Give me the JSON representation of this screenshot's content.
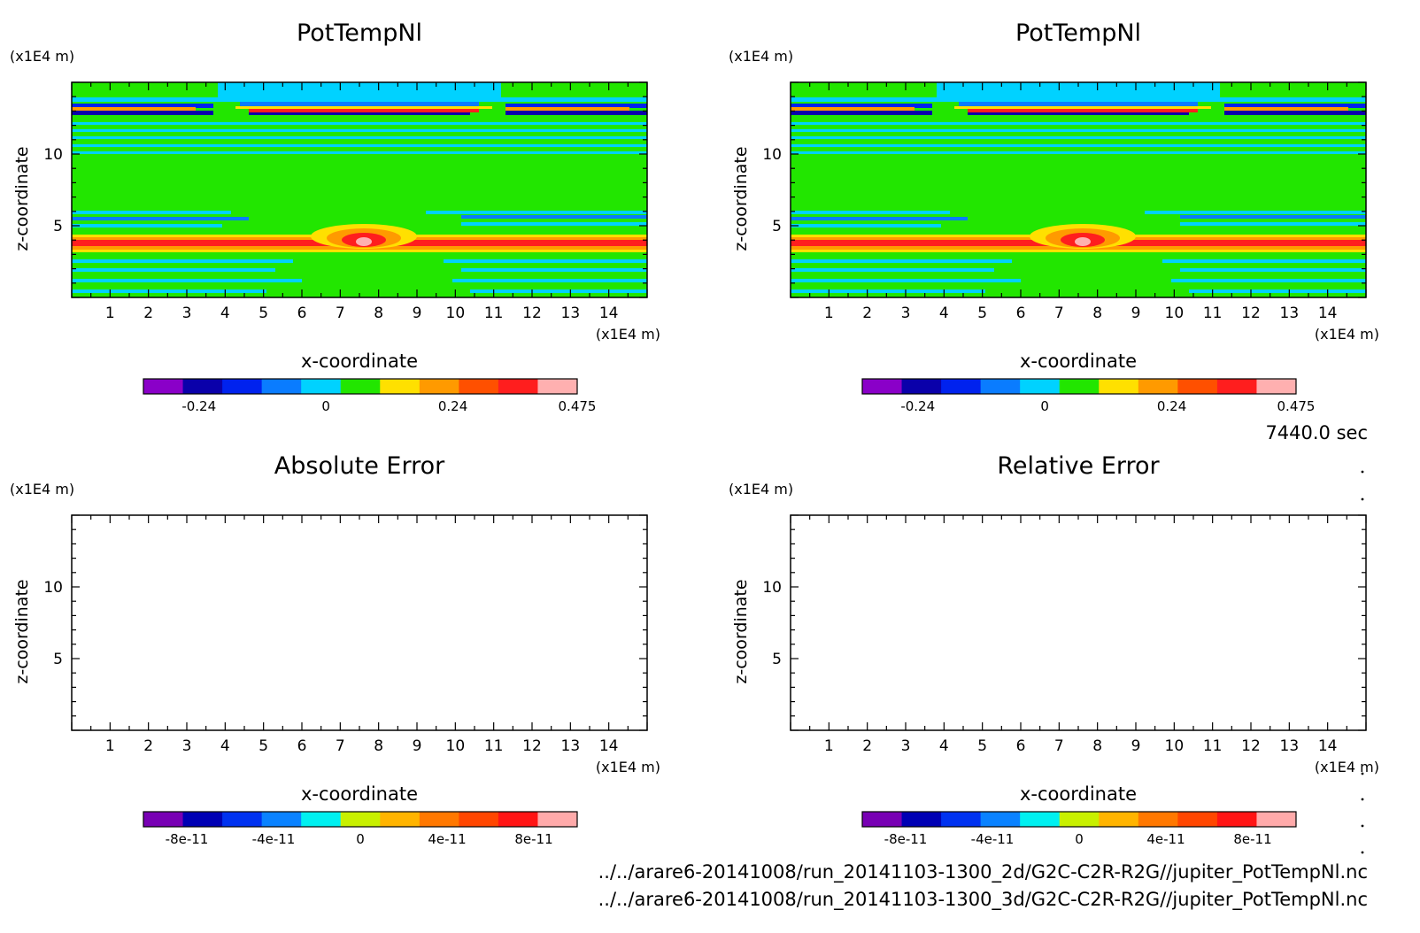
{
  "timestamp": "7440.0 sec",
  "files": [
    "../../arare6-20141008/run_20141103-1300_2d/G2C-C2R-R2G//jupiter_PotTempNl.nc",
    "../../arare6-20141008/run_20141103-1300_3d/G2C-C2R-R2G//jupiter_PotTempNl.nc"
  ],
  "chart_data": [
    {
      "type": "heatmap",
      "title": "PotTempNl",
      "xlabel": "x-coordinate",
      "ylabel": "z-coordinate",
      "x_unit": "(x1E4 m)",
      "y_unit": "(x1E4 m)",
      "xlim": [
        0,
        15
      ],
      "ylim": [
        0,
        15
      ],
      "x_ticks": [
        1,
        2,
        3,
        4,
        5,
        6,
        7,
        8,
        9,
        10,
        11,
        12,
        13,
        14
      ],
      "y_ticks": [
        5,
        10
      ],
      "field": "potential temperature perturbation: warm bubble near x=7.5, z=3.8 with horizontal wave bands",
      "colorbar": {
        "colors": [
          "#8a00c8",
          "#0a00aa",
          "#0022ee",
          "#0a7cff",
          "#00d2ff",
          "#22e600",
          "#ffe000",
          "#ff9a00",
          "#ff5000",
          "#ff1e1e",
          "#ffb0b0"
        ],
        "ticks": [
          {
            "value": -0.24,
            "label": "-0.24"
          },
          {
            "value": 0,
            "label": "0"
          },
          {
            "value": 0.24,
            "label": "0.24"
          },
          {
            "value": 0.475,
            "label": "0.475"
          }
        ],
        "range": [
          -0.345,
          0.475
        ]
      }
    },
    {
      "type": "heatmap",
      "title": "PotTempNl",
      "xlabel": "x-coordinate",
      "ylabel": "z-coordinate",
      "x_unit": "(x1E4 m)",
      "y_unit": "(x1E4 m)",
      "xlim": [
        0,
        15
      ],
      "ylim": [
        0,
        15
      ],
      "x_ticks": [
        1,
        2,
        3,
        4,
        5,
        6,
        7,
        8,
        9,
        10,
        11,
        12,
        13,
        14
      ],
      "y_ticks": [
        5,
        10
      ],
      "field": "potential temperature perturbation: warm bubble near x=7.5, z=3.8 with horizontal wave bands",
      "colorbar": {
        "colors": [
          "#8a00c8",
          "#0a00aa",
          "#0022ee",
          "#0a7cff",
          "#00d2ff",
          "#22e600",
          "#ffe000",
          "#ff9a00",
          "#ff5000",
          "#ff1e1e",
          "#ffb0b0"
        ],
        "ticks": [
          {
            "value": -0.24,
            "label": "-0.24"
          },
          {
            "value": 0,
            "label": "0"
          },
          {
            "value": 0.24,
            "label": "0.24"
          },
          {
            "value": 0.475,
            "label": "0.475"
          }
        ],
        "range": [
          -0.345,
          0.475
        ]
      }
    },
    {
      "type": "heatmap",
      "title": "Absolute Error",
      "xlabel": "x-coordinate",
      "ylabel": "z-coordinate",
      "x_unit": "(x1E4 m)",
      "y_unit": "(x1E4 m)",
      "xlim": [
        0,
        15
      ],
      "ylim": [
        0,
        15
      ],
      "x_ticks": [
        1,
        2,
        3,
        4,
        5,
        6,
        7,
        8,
        9,
        10,
        11,
        12,
        13,
        14
      ],
      "y_ticks": [
        5,
        10
      ],
      "field": "empty",
      "colorbar": {
        "colors": [
          "#7800b4",
          "#0000b4",
          "#0032f0",
          "#0a82ff",
          "#00f0f0",
          "#c8f000",
          "#ffb400",
          "#ff7800",
          "#ff4600",
          "#ff1414",
          "#ffaaaa"
        ],
        "ticks": [
          {
            "value": -8e-11,
            "label": "-8e-11"
          },
          {
            "value": -4e-11,
            "label": "-4e-11"
          },
          {
            "value": 0,
            "label": "0"
          },
          {
            "value": 4e-11,
            "label": "4e-11"
          },
          {
            "value": 8e-11,
            "label": "8e-11"
          }
        ],
        "range": [
          -1e-10,
          1e-10
        ]
      }
    },
    {
      "type": "heatmap",
      "title": "Relative Error",
      "xlabel": "x-coordinate",
      "ylabel": "z-coordinate",
      "x_unit": "(x1E4 m)",
      "y_unit": "(x1E4 m)",
      "xlim": [
        0,
        15
      ],
      "ylim": [
        0,
        15
      ],
      "x_ticks": [
        1,
        2,
        3,
        4,
        5,
        6,
        7,
        8,
        9,
        10,
        11,
        12,
        13,
        14
      ],
      "y_ticks": [
        5,
        10
      ],
      "field": "empty",
      "colorbar": {
        "colors": [
          "#7800b4",
          "#0000b4",
          "#0032f0",
          "#0a82ff",
          "#00f0f0",
          "#c8f000",
          "#ffb400",
          "#ff7800",
          "#ff4600",
          "#ff1414",
          "#ffaaaa"
        ],
        "ticks": [
          {
            "value": -8e-11,
            "label": "-8e-11"
          },
          {
            "value": -4e-11,
            "label": "-4e-11"
          },
          {
            "value": 0,
            "label": "0"
          },
          {
            "value": 4e-11,
            "label": "4e-11"
          },
          {
            "value": 8e-11,
            "label": "8e-11"
          }
        ],
        "range": [
          -1e-10,
          1e-10
        ]
      }
    }
  ]
}
